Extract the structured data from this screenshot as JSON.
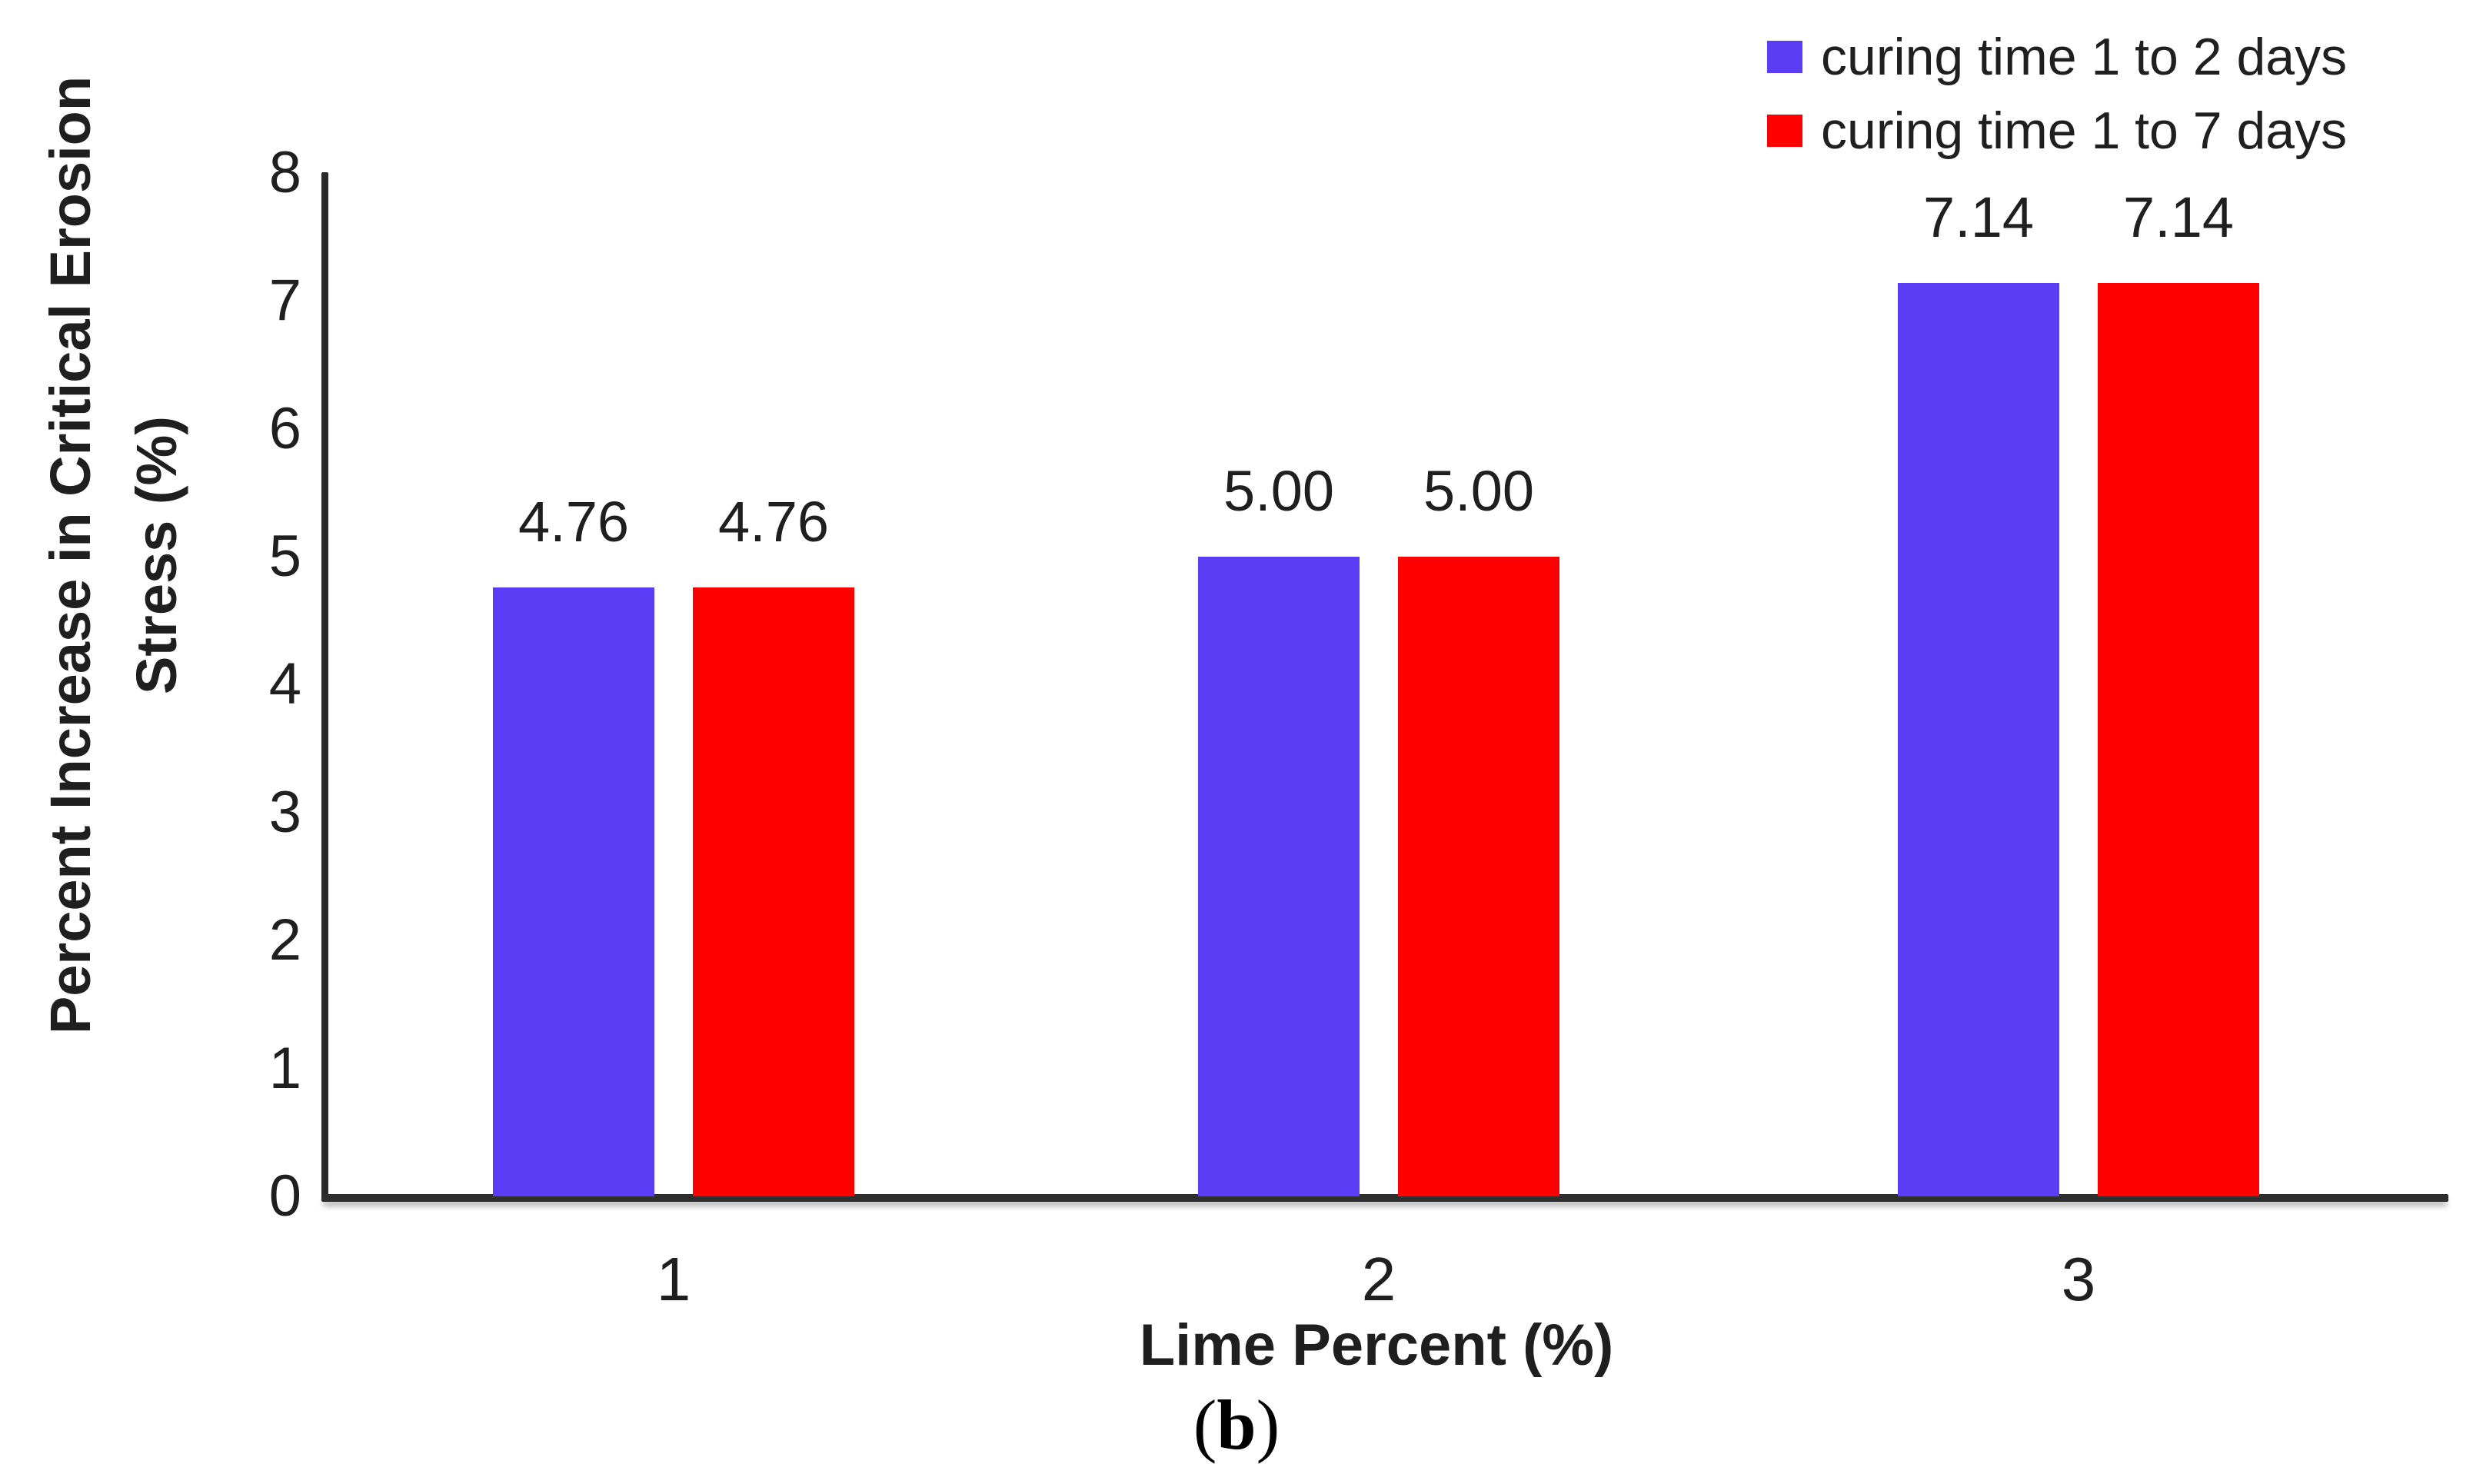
{
  "chart_data": {
    "type": "bar",
    "categories": [
      "1",
      "2",
      "3"
    ],
    "series": [
      {
        "name": "curing time 1 to 2 days",
        "color": "#5B3DF5",
        "values": [
          4.76,
          5.0,
          7.14
        ]
      },
      {
        "name": "curing time 1 to 7 days",
        "color": "#FE0000",
        "values": [
          4.76,
          5.0,
          7.14
        ]
      }
    ],
    "bar_value_labels": [
      [
        "4.76",
        "5.00",
        "7.14"
      ],
      [
        "4.76",
        "5.00",
        "7.14"
      ]
    ],
    "title": "",
    "xlabel": "Lime Percent (%)",
    "ylabel_line1": "Percent Increase in Critical Erosion",
    "ylabel_line2": "Stress (%)",
    "ylim": [
      0,
      8
    ],
    "ytick_step": 1,
    "ytick_labels": [
      "0",
      "1",
      "2",
      "3",
      "4",
      "5",
      "6",
      "7",
      "8"
    ],
    "grid": false,
    "legend_position": "top-right",
    "axis_color": "#2b2b2b",
    "text_color": "#1f1f1f"
  },
  "caption": {
    "open_paren": "(",
    "letter": "b",
    "close_paren": ")"
  }
}
